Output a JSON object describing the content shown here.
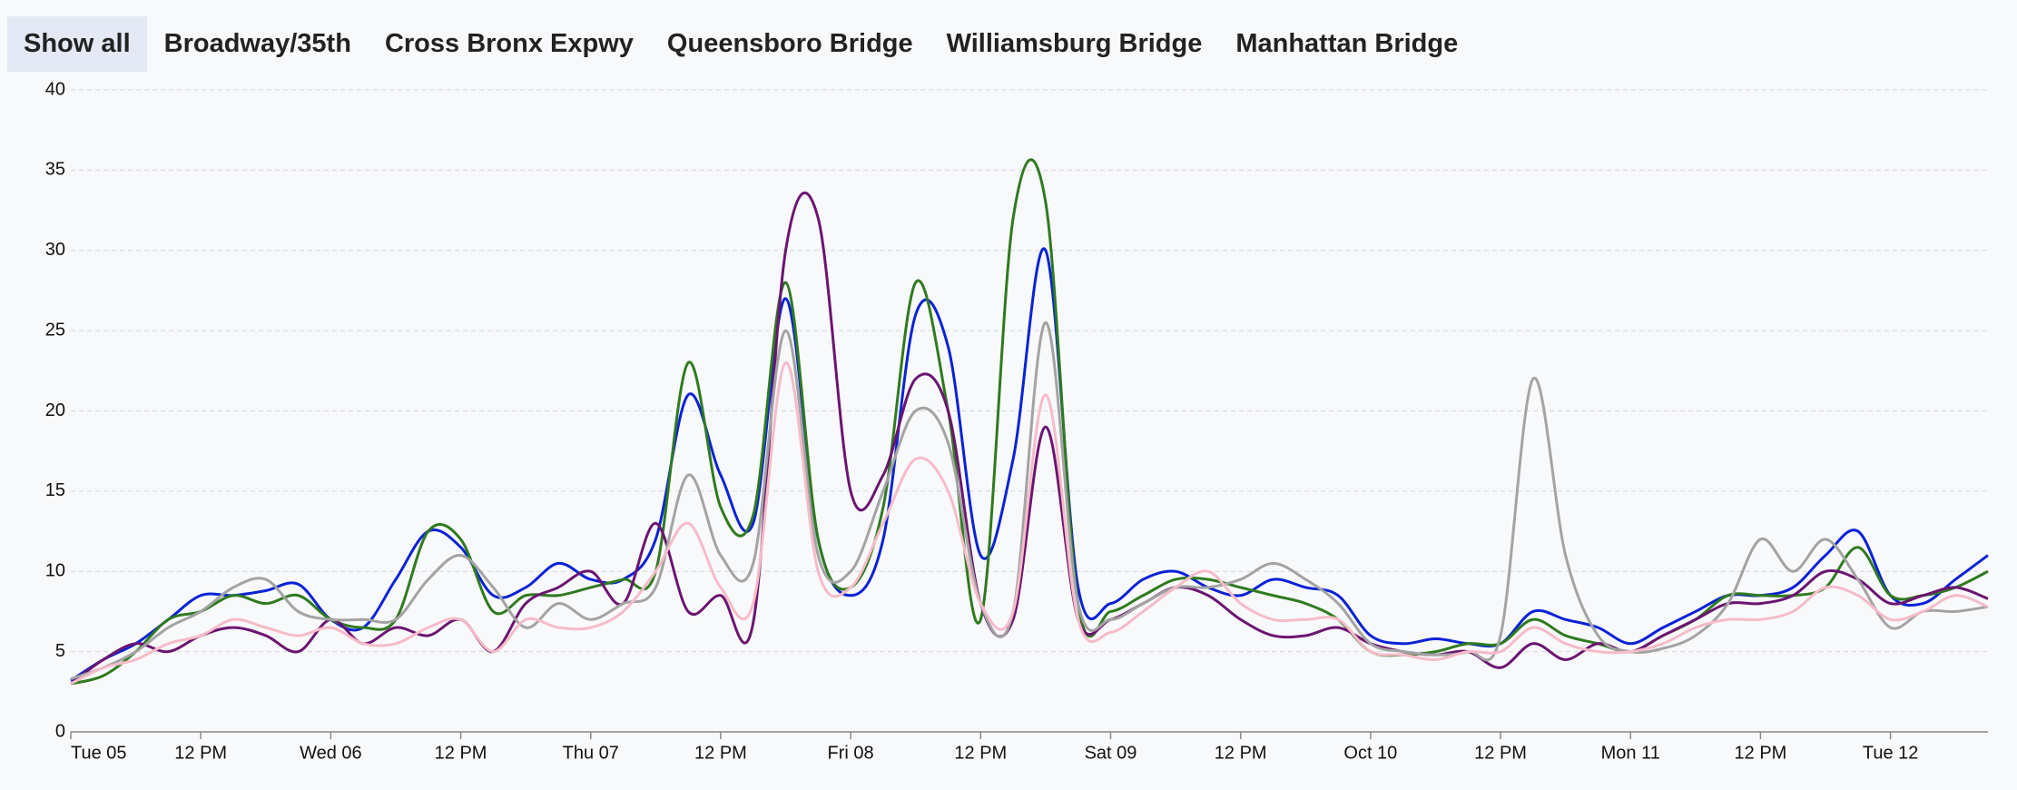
{
  "tabs": {
    "all": "Show all"
  },
  "chart_data": {
    "type": "line",
    "x": [
      0,
      3,
      6,
      9,
      12,
      15,
      18,
      21,
      24,
      27,
      30,
      33,
      36,
      39,
      42,
      45,
      48,
      51,
      54,
      57,
      60,
      63,
      66,
      69,
      72,
      75,
      78,
      81,
      84,
      87,
      90,
      93,
      96,
      99,
      102,
      105,
      108,
      111,
      114,
      117,
      120,
      123,
      126,
      129,
      132,
      135,
      138,
      141,
      144,
      147,
      150,
      153,
      156,
      159,
      162,
      165,
      168,
      171,
      174,
      177
    ],
    "xlim": [
      0,
      177
    ],
    "xticks": [
      {
        "value": 0,
        "label": "Tue 05"
      },
      {
        "value": 12,
        "label": "12 PM"
      },
      {
        "value": 24,
        "label": "Wed 06"
      },
      {
        "value": 36,
        "label": "12 PM"
      },
      {
        "value": 48,
        "label": "Thu 07"
      },
      {
        "value": 60,
        "label": "12 PM"
      },
      {
        "value": 72,
        "label": "Fri 08"
      },
      {
        "value": 84,
        "label": "12 PM"
      },
      {
        "value": 96,
        "label": "Sat 09"
      },
      {
        "value": 108,
        "label": "12 PM"
      },
      {
        "value": 120,
        "label": "Oct 10"
      },
      {
        "value": 132,
        "label": "12 PM"
      },
      {
        "value": 144,
        "label": "Mon 11"
      },
      {
        "value": 156,
        "label": "12 PM"
      },
      {
        "value": 168,
        "label": "Tue 12"
      }
    ],
    "ylim": [
      0,
      40
    ],
    "yticks": [
      0,
      5,
      10,
      15,
      20,
      25,
      30,
      35,
      40
    ],
    "grid": true,
    "series": [
      {
        "name": "Broadway/35th",
        "color": "#0a22d6",
        "values": [
          3.2,
          4.5,
          5.5,
          7,
          8.5,
          8.5,
          8.8,
          9.2,
          7,
          6.5,
          9.5,
          12.5,
          11.5,
          8.5,
          9,
          10.5,
          9.5,
          9.5,
          12,
          21,
          16,
          13,
          27,
          12,
          8.5,
          12,
          26,
          24,
          11,
          17,
          30,
          9,
          8,
          9.5,
          10,
          9,
          8.5,
          9.5,
          9,
          8.5,
          6,
          5.5,
          5.8,
          5.5,
          5.5,
          7.5,
          7,
          6.5,
          5.5,
          6.5,
          7.5,
          8.5,
          8.5,
          9,
          11,
          12.5,
          8.5,
          8,
          9.5,
          11
        ]
      },
      {
        "name": "Cross Bronx Expwy",
        "color": "#2f7a1f",
        "values": [
          3,
          3.5,
          5,
          7,
          7.5,
          8.5,
          8,
          8.5,
          7,
          6.5,
          7,
          12.5,
          12,
          7.5,
          8.5,
          8.5,
          9,
          9.5,
          10,
          23,
          14,
          13.5,
          28,
          12,
          9,
          14,
          28,
          20,
          7,
          32,
          33,
          8,
          7.5,
          8.5,
          9.5,
          9.5,
          9,
          8.5,
          8,
          7,
          5,
          4.8,
          5,
          5.5,
          5.5,
          7,
          6,
          5.5,
          5,
          6,
          7,
          8.5,
          8.5,
          8.5,
          9,
          11.5,
          8.5,
          8.5,
          9,
          10
        ]
      },
      {
        "name": "Queensboro Bridge",
        "color": "#6b1571",
        "values": [
          3,
          4.5,
          5.5,
          5,
          6,
          6.5,
          6,
          5,
          7,
          5.5,
          6.5,
          6,
          7,
          5,
          8,
          9,
          10,
          8,
          13,
          7.5,
          8.5,
          6.8,
          30,
          32,
          15,
          16,
          22,
          20,
          8,
          7,
          19,
          7,
          7,
          8,
          9,
          8.5,
          7,
          6,
          6,
          6.5,
          5.5,
          5,
          4.8,
          5,
          4,
          5.5,
          4.5,
          5.5,
          5,
          6,
          7,
          8,
          8,
          8.5,
          10,
          9.5,
          8,
          8.5,
          9,
          8.3
        ]
      },
      {
        "name": "Williamsburg Bridge",
        "color": "#a3a3a3",
        "values": [
          3.3,
          4,
          5,
          6.5,
          7.5,
          9,
          9.5,
          7.5,
          7,
          7,
          7,
          9.5,
          11,
          9,
          6.5,
          8,
          7,
          8,
          9,
          16,
          11,
          10.5,
          25,
          11,
          10,
          15,
          20,
          18,
          8,
          7.5,
          25.5,
          8,
          7,
          8,
          9,
          9,
          9.5,
          10.5,
          9.5,
          8,
          5.5,
          5,
          4.8,
          5,
          6,
          22,
          11,
          6,
          5,
          5.2,
          6,
          8,
          12,
          10,
          12,
          9.5,
          6.5,
          7.5,
          7.5,
          7.8
        ]
      },
      {
        "name": "Manhattan Bridge",
        "color": "#f5bcc8",
        "values": [
          3,
          4,
          4.5,
          5.5,
          6,
          7,
          6.5,
          6,
          6.5,
          5.5,
          5.5,
          6.5,
          7,
          5,
          7,
          6.5,
          6.5,
          7.5,
          10,
          13,
          9,
          8,
          23,
          10,
          9,
          13,
          17,
          15,
          8,
          7.5,
          21,
          7,
          6.2,
          7.5,
          9,
          10,
          8,
          7,
          7,
          7,
          5,
          4.8,
          4.5,
          5,
          5,
          6.5,
          5.5,
          5,
          5,
          5.5,
          6.5,
          7,
          7,
          7.5,
          9,
          8.5,
          7,
          7.5,
          8.5,
          7.8
        ]
      }
    ]
  }
}
